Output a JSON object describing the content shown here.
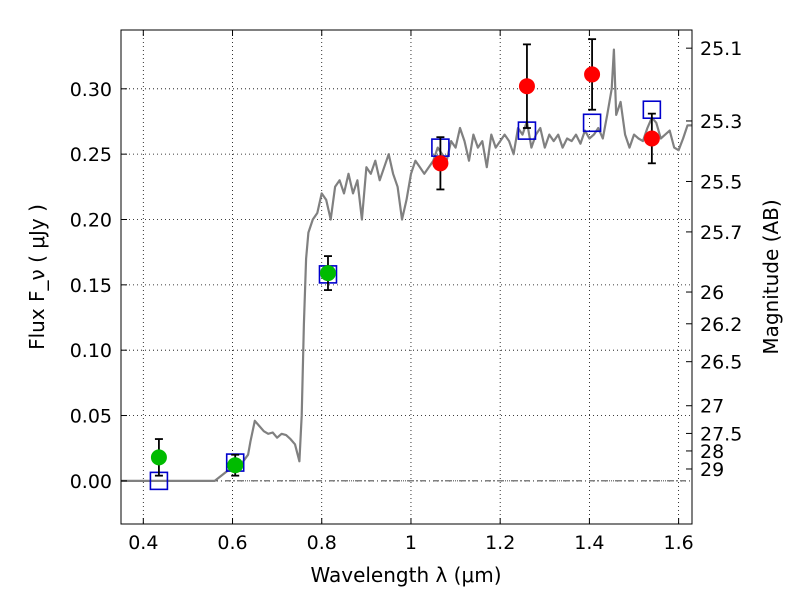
{
  "chart_data": {
    "type": "scatter",
    "xlabel": "Wavelength  λ (μm)",
    "ylabel": "Flux  F_ν  ( μJy )",
    "y2label": "Magnitude (AB)",
    "xlim": [
      0.35,
      1.63
    ],
    "ylim": [
      -0.033,
      0.345
    ],
    "grid": true,
    "x_ticks": [
      0.4,
      0.6,
      0.8,
      1.0,
      1.2,
      1.4,
      1.6
    ],
    "x_tick_labels": [
      "0.4",
      "0.6",
      "0.8",
      "1",
      "1.2",
      "1.4",
      "1.6"
    ],
    "y_ticks": [
      0.0,
      0.05,
      0.1,
      0.15,
      0.2,
      0.25,
      0.3
    ],
    "y_tick_labels": [
      "0.00",
      "0.05",
      "0.10",
      "0.15",
      "0.20",
      "0.25",
      "0.30"
    ],
    "y2_ticks": [
      {
        "label": "25.1",
        "flux": 0.3311
      },
      {
        "label": "25.3",
        "flux": 0.2754
      },
      {
        "label": "25.5",
        "flux": 0.2291
      },
      {
        "label": "25.7",
        "flux": 0.1905
      },
      {
        "label": "26",
        "flux": 0.1445
      },
      {
        "label": "26.2",
        "flux": 0.1202
      },
      {
        "label": "26.5",
        "flux": 0.0912
      },
      {
        "label": "27",
        "flux": 0.0575
      },
      {
        "label": "27.5",
        "flux": 0.0363
      },
      {
        "label": "28",
        "flux": 0.0229
      },
      {
        "label": "29",
        "flux": 0.0091
      }
    ],
    "model_spectrum": {
      "color": "#808080",
      "x": [
        0.35,
        0.56,
        0.575,
        0.59,
        0.6,
        0.615,
        0.62,
        0.635,
        0.64,
        0.65,
        0.66,
        0.67,
        0.68,
        0.69,
        0.7,
        0.71,
        0.72,
        0.73,
        0.74,
        0.75,
        0.755,
        0.76,
        0.765,
        0.77,
        0.78,
        0.79,
        0.8,
        0.81,
        0.82,
        0.83,
        0.84,
        0.85,
        0.86,
        0.87,
        0.88,
        0.89,
        0.9,
        0.91,
        0.92,
        0.93,
        0.94,
        0.95,
        0.96,
        0.97,
        0.98,
        0.99,
        1.0,
        1.01,
        1.02,
        1.03,
        1.04,
        1.05,
        1.06,
        1.07,
        1.08,
        1.09,
        1.1,
        1.11,
        1.12,
        1.13,
        1.14,
        1.15,
        1.16,
        1.17,
        1.18,
        1.19,
        1.2,
        1.21,
        1.22,
        1.23,
        1.24,
        1.25,
        1.26,
        1.27,
        1.28,
        1.29,
        1.3,
        1.31,
        1.32,
        1.33,
        1.34,
        1.35,
        1.36,
        1.37,
        1.38,
        1.39,
        1.4,
        1.41,
        1.42,
        1.43,
        1.44,
        1.45,
        1.455,
        1.46,
        1.47,
        1.48,
        1.49,
        1.5,
        1.51,
        1.52,
        1.53,
        1.54,
        1.55,
        1.56,
        1.57,
        1.58,
        1.59,
        1.6,
        1.61,
        1.62,
        1.63
      ],
      "y": [
        0.0,
        0.0,
        0.004,
        0.008,
        0.01,
        0.014,
        0.013,
        0.02,
        0.03,
        0.046,
        0.042,
        0.038,
        0.036,
        0.037,
        0.033,
        0.036,
        0.035,
        0.032,
        0.028,
        0.015,
        0.05,
        0.12,
        0.17,
        0.19,
        0.2,
        0.205,
        0.22,
        0.215,
        0.2,
        0.225,
        0.23,
        0.22,
        0.235,
        0.22,
        0.23,
        0.2,
        0.24,
        0.235,
        0.245,
        0.23,
        0.24,
        0.25,
        0.235,
        0.225,
        0.2,
        0.215,
        0.235,
        0.245,
        0.24,
        0.235,
        0.24,
        0.245,
        0.255,
        0.25,
        0.245,
        0.26,
        0.255,
        0.27,
        0.26,
        0.245,
        0.265,
        0.255,
        0.26,
        0.24,
        0.265,
        0.255,
        0.26,
        0.265,
        0.26,
        0.25,
        0.27,
        0.265,
        0.275,
        0.255,
        0.265,
        0.27,
        0.255,
        0.265,
        0.26,
        0.265,
        0.255,
        0.262,
        0.26,
        0.265,
        0.258,
        0.268,
        0.262,
        0.265,
        0.27,
        0.262,
        0.28,
        0.3,
        0.33,
        0.28,
        0.29,
        0.265,
        0.255,
        0.265,
        0.262,
        0.26,
        0.27,
        0.278,
        0.274,
        0.262,
        0.265,
        0.268,
        0.255,
        0.253,
        0.262,
        0.272,
        0.272
      ]
    },
    "series": [
      {
        "marker": "open-square",
        "color": "#0000cc",
        "x": [
          0.435,
          0.606,
          0.814,
          1.066,
          1.26,
          1.406,
          1.54
        ],
        "y": [
          0.0,
          0.014,
          0.158,
          0.255,
          0.268,
          0.274,
          0.284
        ]
      },
      {
        "marker": "circle",
        "color": "#00bb00",
        "x": [
          0.435,
          0.606,
          0.814
        ],
        "y": [
          0.018,
          0.012,
          0.159
        ],
        "yerr": [
          0.014,
          0.008,
          0.013
        ]
      },
      {
        "marker": "circle",
        "color": "#ff0000",
        "x": [
          1.066,
          1.26,
          1.406,
          1.54
        ],
        "y": [
          0.243,
          0.302,
          0.311,
          0.262
        ],
        "yerr": [
          0.02,
          0.032,
          0.027,
          0.019
        ]
      }
    ],
    "zero_line": {
      "y": 0.0
    }
  }
}
